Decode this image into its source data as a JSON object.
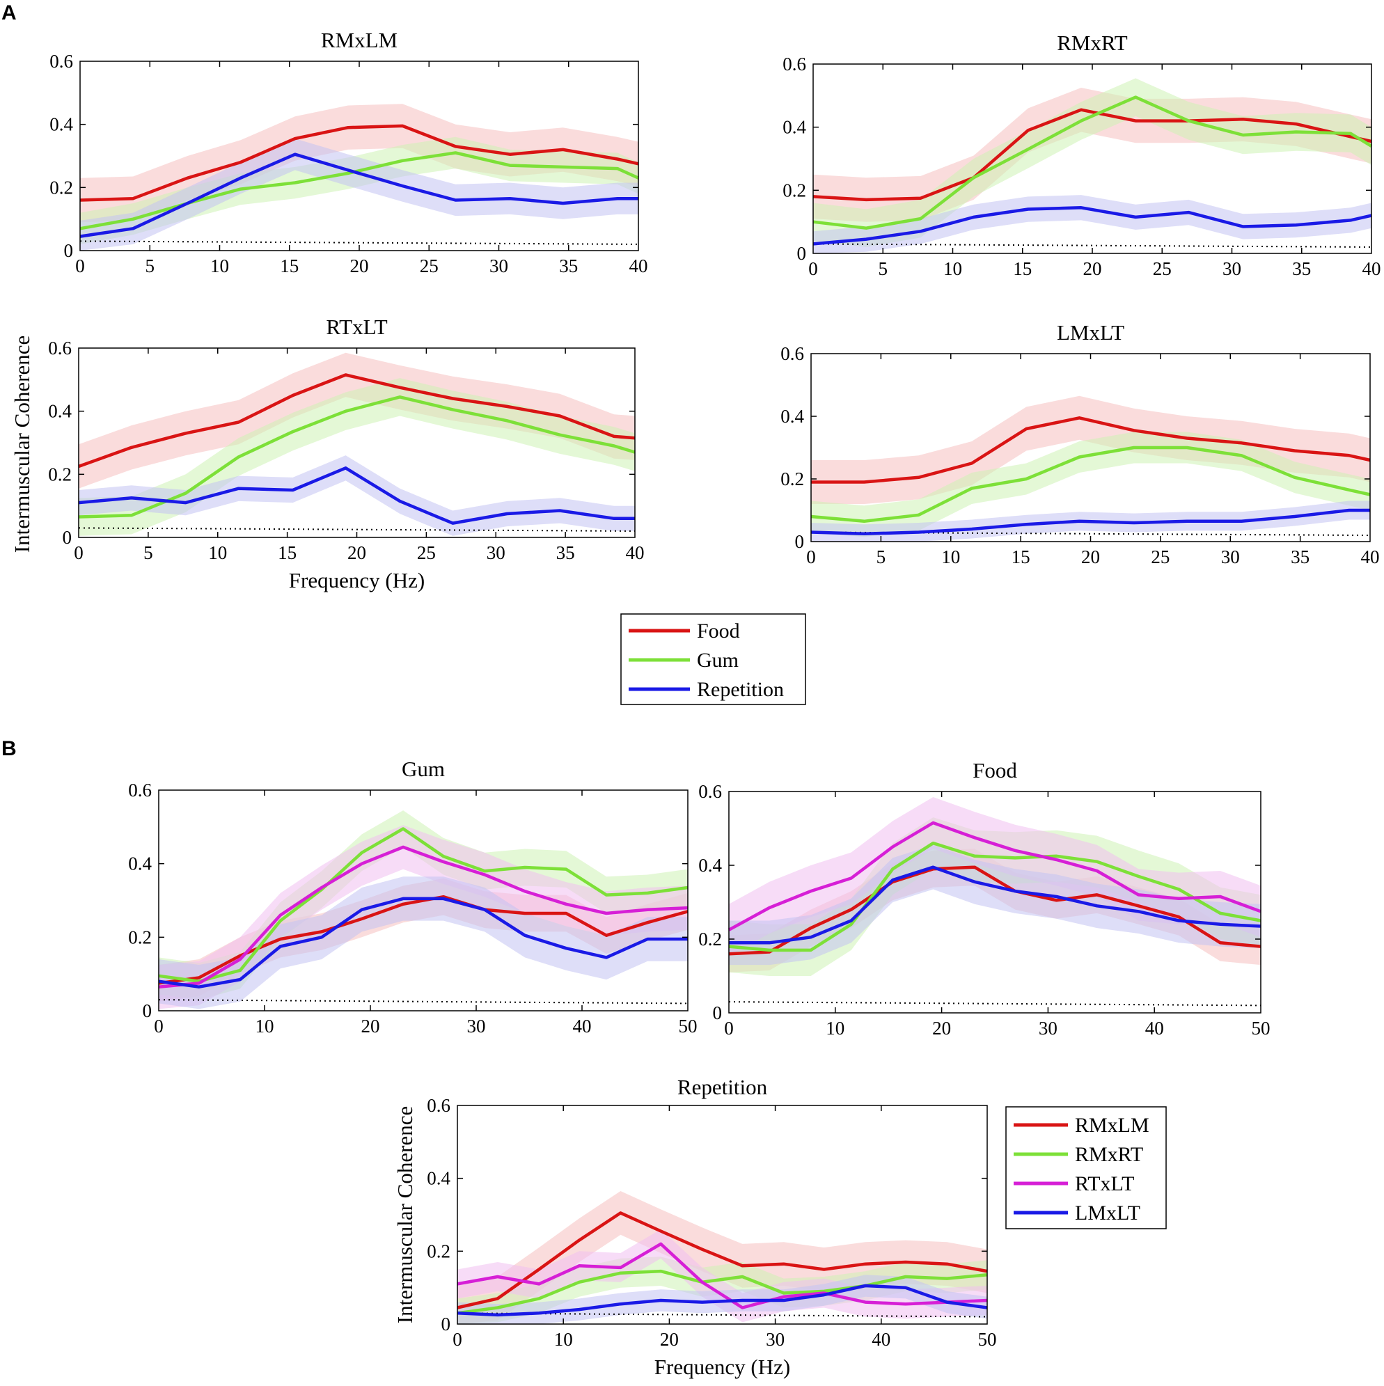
{
  "figure": {
    "panel_a_label": "A",
    "panel_b_label": "B"
  },
  "colors": {
    "red": "#d91414",
    "green": "#7de038",
    "blue": "#1a1ae6",
    "magenta": "#d61fd6",
    "red_band": "#f5c0c0",
    "green_band": "#cdf2b4",
    "blue_band": "#c2c2f2",
    "magenta_band": "#f0c0f0"
  },
  "legends": {
    "panel_a": [
      {
        "label": "Food",
        "color": "red"
      },
      {
        "label": "Gum",
        "color": "green"
      },
      {
        "label": "Repetition",
        "color": "blue"
      }
    ],
    "panel_b": [
      {
        "label": "RMxLM",
        "color": "red"
      },
      {
        "label": "RMxRT",
        "color": "green"
      },
      {
        "label": "RTxLT",
        "color": "magenta"
      },
      {
        "label": "LMxLT",
        "color": "blue"
      }
    ]
  },
  "chart_data": [
    {
      "id": "a-rmxlm",
      "type": "line",
      "title": "RMxLM",
      "xlabel": "",
      "ylabel": "",
      "xlim": [
        0,
        40
      ],
      "ylim": [
        0,
        0.6
      ],
      "xticks": [
        "0",
        "5",
        "10",
        "15",
        "20",
        "25",
        "30",
        "35",
        "40"
      ],
      "yticks": [
        "0",
        "0.2",
        "0.4",
        "0.6"
      ],
      "threshold": {
        "style": "dotted",
        "values": [
          0.03,
          0.02
        ]
      },
      "x": [
        0,
        3.8,
        7.7,
        11.5,
        15.4,
        19.2,
        23.1,
        26.9,
        30.8,
        34.6,
        38.5,
        40
      ],
      "series": [
        {
          "name": "Food",
          "color": "red",
          "band": 0.07,
          "values": [
            0.16,
            0.165,
            0.23,
            0.28,
            0.355,
            0.39,
            0.395,
            0.33,
            0.305,
            0.32,
            0.29,
            0.275
          ]
        },
        {
          "name": "Gum",
          "color": "green",
          "band": 0.05,
          "values": [
            0.07,
            0.1,
            0.15,
            0.195,
            0.215,
            0.245,
            0.285,
            0.31,
            0.27,
            0.265,
            0.26,
            0.23
          ]
        },
        {
          "name": "Repetition",
          "color": "blue",
          "band": 0.05,
          "values": [
            0.045,
            0.07,
            0.15,
            0.23,
            0.305,
            0.255,
            0.205,
            0.16,
            0.165,
            0.15,
            0.165,
            0.165
          ]
        }
      ]
    },
    {
      "id": "a-rmxrt",
      "type": "line",
      "title": "RMxRT",
      "xlabel": "",
      "ylabel": "",
      "xlim": [
        0,
        40
      ],
      "ylim": [
        0,
        0.6
      ],
      "xticks": [
        "0",
        "5",
        "10",
        "15",
        "20",
        "25",
        "30",
        "35",
        "40"
      ],
      "yticks": [
        "0",
        "0.2",
        "0.4",
        "0.6"
      ],
      "threshold": {
        "style": "dotted",
        "values": [
          0.03,
          0.02
        ]
      },
      "x": [
        0,
        3.8,
        7.7,
        11.5,
        15.4,
        19.2,
        23.1,
        26.9,
        30.8,
        34.6,
        38.5,
        40
      ],
      "series": [
        {
          "name": "Food",
          "color": "red",
          "band": 0.07,
          "values": [
            0.18,
            0.17,
            0.175,
            0.24,
            0.39,
            0.455,
            0.42,
            0.42,
            0.425,
            0.41,
            0.37,
            0.355
          ]
        },
        {
          "name": "Gum",
          "color": "green",
          "band": 0.06,
          "values": [
            0.1,
            0.08,
            0.11,
            0.24,
            0.33,
            0.42,
            0.495,
            0.42,
            0.375,
            0.385,
            0.38,
            0.34
          ]
        },
        {
          "name": "Repetition",
          "color": "blue",
          "band": 0.04,
          "values": [
            0.03,
            0.045,
            0.07,
            0.115,
            0.14,
            0.145,
            0.115,
            0.13,
            0.085,
            0.09,
            0.105,
            0.12
          ]
        }
      ]
    },
    {
      "id": "a-rtxlt",
      "type": "line",
      "title": "RTxLT",
      "xlabel": "Frequency (Hz)",
      "ylabel": "",
      "xlim": [
        0,
        40
      ],
      "ylim": [
        0,
        0.6
      ],
      "xticks": [
        "0",
        "5",
        "10",
        "15",
        "20",
        "25",
        "30",
        "35",
        "40"
      ],
      "yticks": [
        "0",
        "0.2",
        "0.4",
        "0.6"
      ],
      "threshold": {
        "style": "dotted",
        "values": [
          0.03,
          0.02
        ]
      },
      "x": [
        0,
        3.8,
        7.7,
        11.5,
        15.4,
        19.2,
        23.1,
        26.9,
        30.8,
        34.6,
        38.5,
        40
      ],
      "series": [
        {
          "name": "Food",
          "color": "red",
          "band": 0.07,
          "values": [
            0.225,
            0.285,
            0.33,
            0.365,
            0.45,
            0.515,
            0.475,
            0.44,
            0.415,
            0.385,
            0.32,
            0.315
          ]
        },
        {
          "name": "Gum",
          "color": "green",
          "band": 0.06,
          "values": [
            0.065,
            0.07,
            0.14,
            0.255,
            0.335,
            0.4,
            0.445,
            0.405,
            0.37,
            0.325,
            0.29,
            0.27
          ]
        },
        {
          "name": "Repetition",
          "color": "blue",
          "band": 0.04,
          "values": [
            0.11,
            0.125,
            0.11,
            0.155,
            0.15,
            0.22,
            0.115,
            0.045,
            0.075,
            0.085,
            0.06,
            0.06
          ]
        }
      ]
    },
    {
      "id": "a-lmxlt",
      "type": "line",
      "title": "LMxLT",
      "xlabel": "",
      "ylabel": "",
      "xlim": [
        0,
        40
      ],
      "ylim": [
        0,
        0.6
      ],
      "xticks": [
        "0",
        "5",
        "10",
        "15",
        "20",
        "25",
        "30",
        "35",
        "40"
      ],
      "yticks": [
        "0",
        "0.2",
        "0.4",
        "0.6"
      ],
      "threshold": {
        "style": "dotted",
        "values": [
          0.03,
          0.02
        ]
      },
      "x": [
        0,
        3.8,
        7.7,
        11.5,
        15.4,
        19.2,
        23.1,
        26.9,
        30.8,
        34.6,
        38.5,
        40
      ],
      "series": [
        {
          "name": "Food",
          "color": "red",
          "band": 0.07,
          "values": [
            0.19,
            0.19,
            0.205,
            0.25,
            0.36,
            0.395,
            0.355,
            0.33,
            0.315,
            0.29,
            0.275,
            0.26
          ]
        },
        {
          "name": "Gum",
          "color": "green",
          "band": 0.05,
          "values": [
            0.08,
            0.065,
            0.085,
            0.17,
            0.2,
            0.27,
            0.3,
            0.3,
            0.275,
            0.205,
            0.165,
            0.15
          ]
        },
        {
          "name": "Repetition",
          "color": "blue",
          "band": 0.03,
          "values": [
            0.03,
            0.025,
            0.03,
            0.04,
            0.055,
            0.065,
            0.06,
            0.065,
            0.065,
            0.08,
            0.1,
            0.1
          ]
        }
      ]
    },
    {
      "id": "b-gum",
      "type": "line",
      "title": "Gum",
      "xlabel": "",
      "ylabel": "",
      "xlim": [
        0,
        50
      ],
      "ylim": [
        0,
        0.6
      ],
      "xticks": [
        "0",
        "10",
        "20",
        "30",
        "40",
        "50"
      ],
      "yticks": [
        "0",
        "0.2",
        "0.4",
        "0.6"
      ],
      "threshold": {
        "style": "dotted",
        "values": [
          0.03,
          0.02
        ]
      },
      "x": [
        0,
        3.8,
        7.7,
        11.5,
        15.4,
        19.2,
        23.1,
        26.9,
        30.8,
        34.6,
        38.5,
        42.3,
        46.2,
        50
      ],
      "series": [
        {
          "name": "RMxLM",
          "color": "red",
          "band": 0.05,
          "values": [
            0.075,
            0.09,
            0.15,
            0.195,
            0.215,
            0.25,
            0.29,
            0.31,
            0.275,
            0.265,
            0.265,
            0.205,
            0.24,
            0.27
          ]
        },
        {
          "name": "RMxRT",
          "color": "green",
          "band": 0.05,
          "values": [
            0.095,
            0.08,
            0.11,
            0.245,
            0.33,
            0.43,
            0.495,
            0.42,
            0.38,
            0.39,
            0.385,
            0.315,
            0.32,
            0.335
          ]
        },
        {
          "name": "RTxLT",
          "color": "magenta",
          "band": 0.06,
          "values": [
            0.065,
            0.075,
            0.14,
            0.26,
            0.335,
            0.4,
            0.445,
            0.405,
            0.37,
            0.325,
            0.29,
            0.265,
            0.275,
            0.28
          ]
        },
        {
          "name": "LMxLT",
          "color": "blue",
          "band": 0.06,
          "values": [
            0.08,
            0.065,
            0.085,
            0.175,
            0.2,
            0.275,
            0.305,
            0.305,
            0.275,
            0.205,
            0.17,
            0.145,
            0.195,
            0.195
          ]
        }
      ]
    },
    {
      "id": "b-food",
      "type": "line",
      "title": "Food",
      "xlabel": "",
      "ylabel": "",
      "xlim": [
        0,
        50
      ],
      "ylim": [
        0,
        0.6
      ],
      "xticks": [
        "0",
        "10",
        "20",
        "30",
        "40",
        "50"
      ],
      "yticks": [
        "0",
        "0.2",
        "0.4",
        "0.6"
      ],
      "threshold": {
        "style": "dotted",
        "values": [
          0.03,
          0.02
        ]
      },
      "x": [
        0,
        3.8,
        7.7,
        11.5,
        15.4,
        19.2,
        23.1,
        26.9,
        30.8,
        34.6,
        38.5,
        42.3,
        46.2,
        50
      ],
      "series": [
        {
          "name": "RMxLM",
          "color": "red",
          "band": 0.05,
          "values": [
            0.16,
            0.165,
            0.23,
            0.28,
            0.355,
            0.39,
            0.395,
            0.33,
            0.305,
            0.32,
            0.29,
            0.26,
            0.19,
            0.18
          ]
        },
        {
          "name": "RMxRT",
          "color": "green",
          "band": 0.07,
          "values": [
            0.18,
            0.17,
            0.17,
            0.24,
            0.39,
            0.46,
            0.425,
            0.42,
            0.425,
            0.41,
            0.37,
            0.335,
            0.27,
            0.25
          ]
        },
        {
          "name": "RTxLT",
          "color": "magenta",
          "band": 0.07,
          "values": [
            0.225,
            0.285,
            0.33,
            0.365,
            0.45,
            0.515,
            0.475,
            0.44,
            0.415,
            0.385,
            0.32,
            0.31,
            0.315,
            0.275
          ]
        },
        {
          "name": "LMxLT",
          "color": "blue",
          "band": 0.06,
          "values": [
            0.19,
            0.19,
            0.205,
            0.25,
            0.36,
            0.395,
            0.355,
            0.33,
            0.315,
            0.29,
            0.275,
            0.25,
            0.24,
            0.235
          ]
        }
      ]
    },
    {
      "id": "b-repetition",
      "type": "line",
      "title": "Repetition",
      "xlabel": "Frequency (Hz)",
      "ylabel": "Intermuscular Coherence",
      "xlim": [
        0,
        50
      ],
      "ylim": [
        0,
        0.6
      ],
      "xticks": [
        "0",
        "10",
        "20",
        "30",
        "40",
        "50"
      ],
      "yticks": [
        "0",
        "0.2",
        "0.4",
        "0.6"
      ],
      "threshold": {
        "style": "dotted",
        "values": [
          0.03,
          0.02
        ]
      },
      "x": [
        0,
        3.8,
        7.7,
        11.5,
        15.4,
        19.2,
        23.1,
        26.9,
        30.8,
        34.6,
        38.5,
        42.3,
        46.2,
        50
      ],
      "series": [
        {
          "name": "RMxLM",
          "color": "red",
          "band": 0.06,
          "values": [
            0.045,
            0.07,
            0.15,
            0.23,
            0.305,
            0.255,
            0.205,
            0.16,
            0.165,
            0.15,
            0.165,
            0.17,
            0.165,
            0.145
          ]
        },
        {
          "name": "RMxRT",
          "color": "green",
          "band": 0.04,
          "values": [
            0.03,
            0.045,
            0.07,
            0.115,
            0.14,
            0.145,
            0.115,
            0.13,
            0.085,
            0.09,
            0.105,
            0.13,
            0.125,
            0.135
          ]
        },
        {
          "name": "RTxLT",
          "color": "magenta",
          "band": 0.04,
          "values": [
            0.11,
            0.13,
            0.11,
            0.16,
            0.155,
            0.22,
            0.115,
            0.045,
            0.075,
            0.085,
            0.06,
            0.055,
            0.06,
            0.065
          ]
        },
        {
          "name": "LMxLT",
          "color": "blue",
          "band": 0.03,
          "values": [
            0.03,
            0.025,
            0.03,
            0.04,
            0.055,
            0.065,
            0.06,
            0.065,
            0.065,
            0.08,
            0.105,
            0.1,
            0.06,
            0.045
          ]
        }
      ]
    }
  ],
  "shared_labels": {
    "panel_a_ylabel": "Intermuscular Coherence"
  }
}
